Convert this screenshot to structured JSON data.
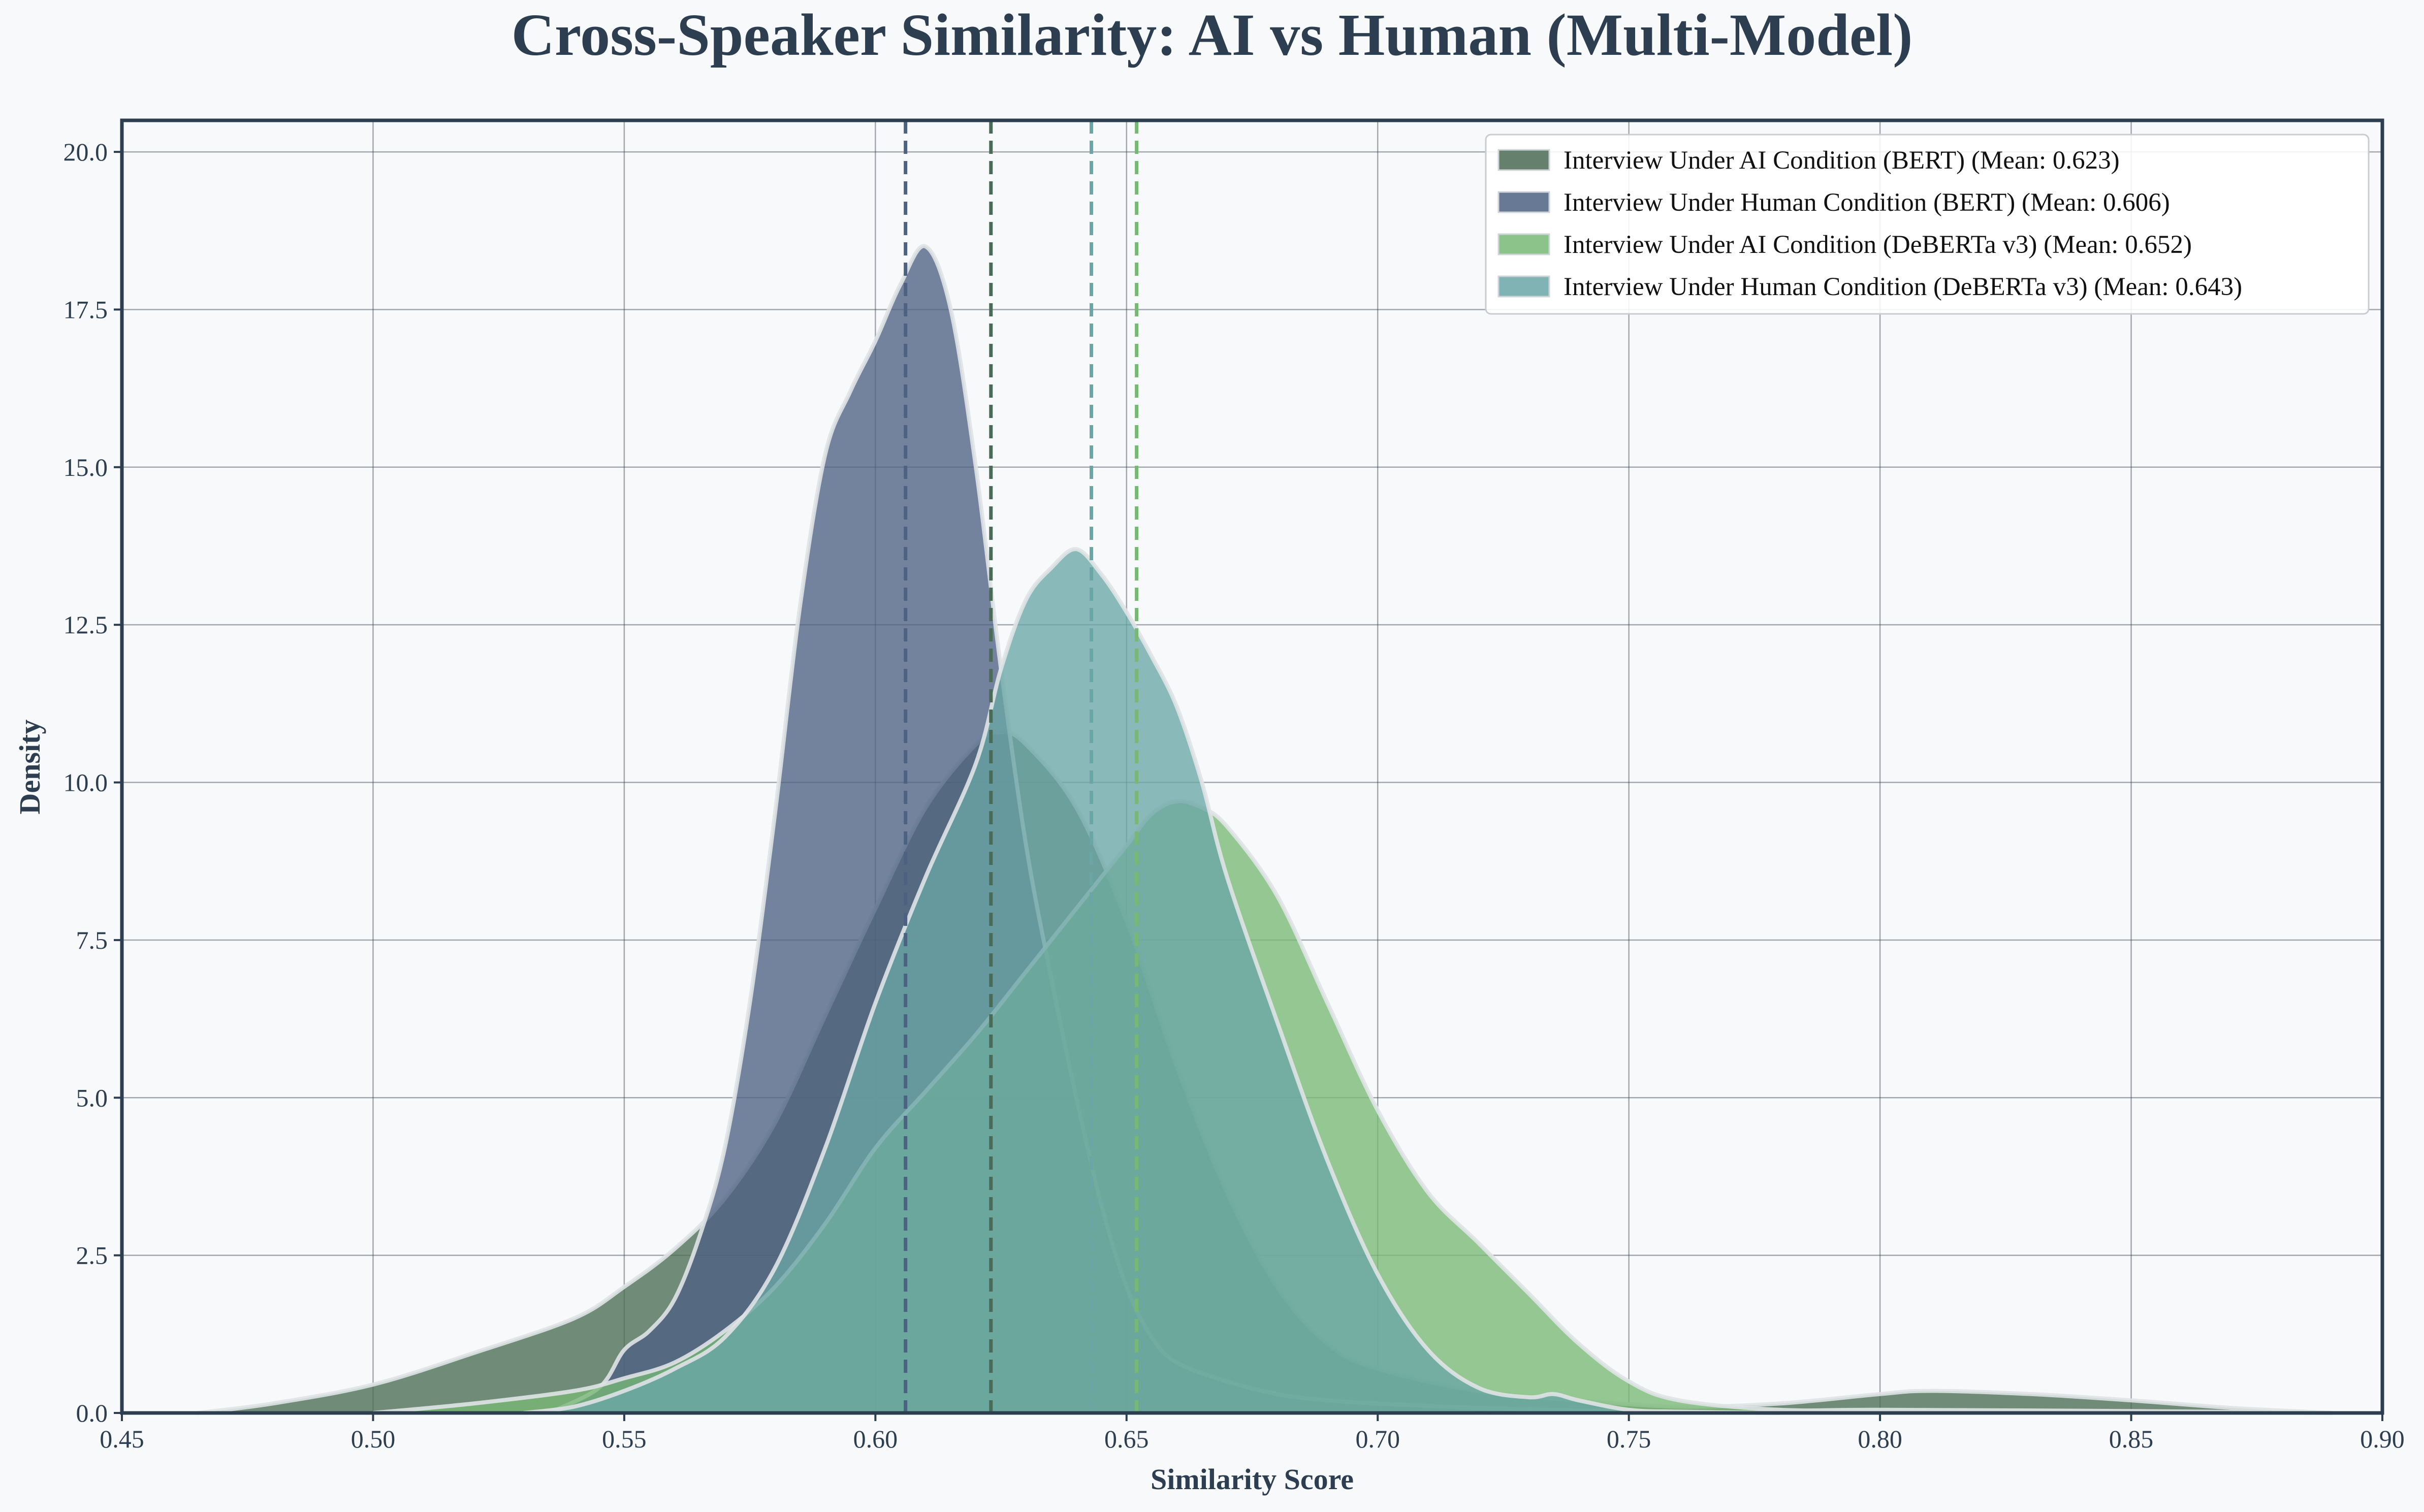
{
  "chart_data": {
    "type": "area",
    "title": "Cross-Speaker Similarity: AI vs Human (Multi-Model)",
    "xlabel": "Similarity Score",
    "ylabel": "Density",
    "xlim": [
      0.45,
      0.9
    ],
    "ylim": [
      0,
      20.5
    ],
    "xticks": [
      0.45,
      0.5,
      0.55,
      0.6,
      0.65,
      0.7,
      0.75,
      0.8,
      0.85,
      0.9
    ],
    "xtick_labels": [
      "0.45",
      "0.50",
      "0.55",
      "0.60",
      "0.65",
      "0.70",
      "0.75",
      "0.80",
      "0.85",
      "0.90"
    ],
    "yticks": [
      0,
      2.5,
      5,
      7.5,
      10,
      12.5,
      15,
      17.5,
      20
    ],
    "ytick_labels": [
      "0.0",
      "2.5",
      "5.0",
      "7.5",
      "10.0",
      "12.5",
      "15.0",
      "17.5",
      "20.0"
    ],
    "grid": true,
    "legend_position": "top-right",
    "series": [
      {
        "name": "Interview Under AI Condition (BERT) (Mean: 0.623)",
        "color": "#4a6b55",
        "mean": 0.623,
        "x": [
          0.465,
          0.48,
          0.5,
          0.52,
          0.54,
          0.55,
          0.56,
          0.57,
          0.58,
          0.59,
          0.6,
          0.61,
          0.62,
          0.625,
          0.63,
          0.64,
          0.65,
          0.66,
          0.67,
          0.68,
          0.69,
          0.7,
          0.72,
          0.74,
          0.76,
          0.78,
          0.8,
          0.81,
          0.83,
          0.85,
          0.87,
          0.89
        ],
        "y": [
          0,
          0.15,
          0.45,
          0.95,
          1.5,
          2.0,
          2.6,
          3.4,
          4.6,
          6.3,
          8.0,
          9.6,
          10.6,
          10.8,
          10.6,
          9.6,
          7.8,
          5.5,
          3.5,
          2.0,
          1.1,
          0.7,
          0.35,
          0.2,
          0.1,
          0.15,
          0.3,
          0.35,
          0.3,
          0.2,
          0.08,
          0
        ]
      },
      {
        "name": "Interview Under Human Condition (BERT) (Mean: 0.606)",
        "color": "#4d6283",
        "mean": 0.606,
        "x": [
          0.535,
          0.545,
          0.55,
          0.555,
          0.56,
          0.565,
          0.57,
          0.575,
          0.58,
          0.585,
          0.59,
          0.595,
          0.6,
          0.605,
          0.61,
          0.615,
          0.62,
          0.625,
          0.63,
          0.635,
          0.64,
          0.645,
          0.65,
          0.655,
          0.66,
          0.67,
          0.68,
          0.69,
          0.7,
          0.72,
          0.74,
          0.76,
          0.78
        ],
        "y": [
          0,
          0.4,
          1.0,
          1.3,
          1.8,
          2.8,
          4.2,
          6.5,
          9.5,
          12.8,
          15.2,
          16.2,
          17.0,
          17.9,
          18.5,
          17.5,
          15.0,
          11.8,
          9.0,
          6.9,
          5.0,
          3.3,
          2.0,
          1.2,
          0.8,
          0.5,
          0.3,
          0.2,
          0.15,
          0.08,
          0.04,
          0.02,
          0
        ]
      },
      {
        "name": "Interview Under AI Condition (DeBERTa v3) (Mean: 0.652)",
        "color": "#78b876",
        "mean": 0.652,
        "x": [
          0.5,
          0.52,
          0.54,
          0.55,
          0.56,
          0.57,
          0.58,
          0.59,
          0.6,
          0.61,
          0.62,
          0.63,
          0.64,
          0.65,
          0.655,
          0.66,
          0.665,
          0.67,
          0.68,
          0.69,
          0.7,
          0.71,
          0.72,
          0.73,
          0.74,
          0.75,
          0.76,
          0.78,
          0.8,
          0.85,
          0.89
        ],
        "y": [
          0,
          0.15,
          0.35,
          0.55,
          0.8,
          1.3,
          2.0,
          3.0,
          4.2,
          5.1,
          6.0,
          7.0,
          8.0,
          9.0,
          9.5,
          9.7,
          9.6,
          9.3,
          8.2,
          6.5,
          4.8,
          3.5,
          2.7,
          1.9,
          1.1,
          0.5,
          0.2,
          0.05,
          0.05,
          0.03,
          0
        ]
      },
      {
        "name": "Interview Under Human Condition (DeBERTa v3) (Mean: 0.643)",
        "color": "#6aa6a6",
        "mean": 0.643,
        "x": [
          0.53,
          0.54,
          0.55,
          0.56,
          0.57,
          0.58,
          0.59,
          0.6,
          0.61,
          0.62,
          0.625,
          0.63,
          0.635,
          0.64,
          0.645,
          0.65,
          0.655,
          0.66,
          0.665,
          0.67,
          0.68,
          0.69,
          0.7,
          0.71,
          0.72,
          0.73,
          0.735,
          0.74,
          0.75,
          0.76,
          0.78
        ],
        "y": [
          0,
          0.1,
          0.35,
          0.7,
          1.2,
          2.3,
          4.2,
          6.5,
          8.5,
          10.3,
          11.8,
          12.9,
          13.4,
          13.7,
          13.3,
          12.7,
          12.0,
          11.2,
          10.0,
          8.5,
          6.2,
          4.0,
          2.2,
          1.0,
          0.4,
          0.25,
          0.3,
          0.2,
          0.05,
          0.02,
          0
        ]
      }
    ]
  }
}
